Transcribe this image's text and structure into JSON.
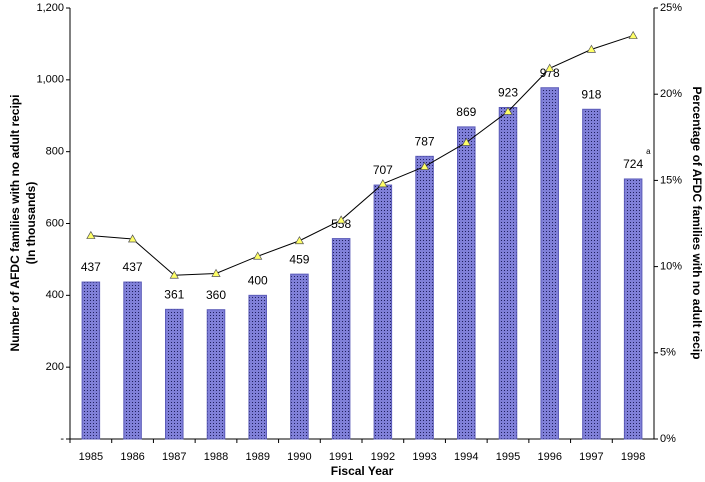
{
  "chart_data": {
    "type": "bar",
    "categories": [
      "1985",
      "1986",
      "1987",
      "1988",
      "1989",
      "1990",
      "1991",
      "1992",
      "1993",
      "1994",
      "1995",
      "1996",
      "1997",
      "1998"
    ],
    "values": [
      437,
      437,
      361,
      360,
      400,
      459,
      558,
      707,
      787,
      869,
      923,
      978,
      918,
      724
    ],
    "color": "#5b5bb8",
    "annotation": "a",
    "ylim": [
      0,
      1200
    ],
    "yticks": [
      {
        "value": 0,
        "label": "-"
      },
      200,
      400,
      600,
      800,
      {
        "value": 1000,
        "label": "1,000"
      },
      {
        "value": 1200,
        "label": "1,200"
      }
    ],
    "y2lim": [
      0,
      25
    ],
    "y2ticks": [
      {
        "value": 0,
        "label": "0%"
      },
      {
        "value": 5,
        "label": "5%"
      },
      {
        "value": 10,
        "label": "10%"
      },
      {
        "value": 15,
        "label": "15%"
      },
      {
        "value": 20,
        "label": "20%"
      },
      {
        "value": 25,
        "label": "25%"
      }
    ],
    "overlay": {
      "type": "line",
      "axis": "y2",
      "color": "#000000",
      "marker_color": "#ffff66",
      "values": [
        11.8,
        11.6,
        9.5,
        9.6,
        10.6,
        11.5,
        12.7,
        14.8,
        15.8,
        17.2,
        19.0,
        21.5,
        22.6,
        23.4
      ]
    },
    "xlabel": "Fiscal Year",
    "ylabel": [
      "Number of AFDC families with no adult recipi",
      "(In thousands)"
    ],
    "y2label": "Percentage of AFDC families with no adult recip"
  }
}
